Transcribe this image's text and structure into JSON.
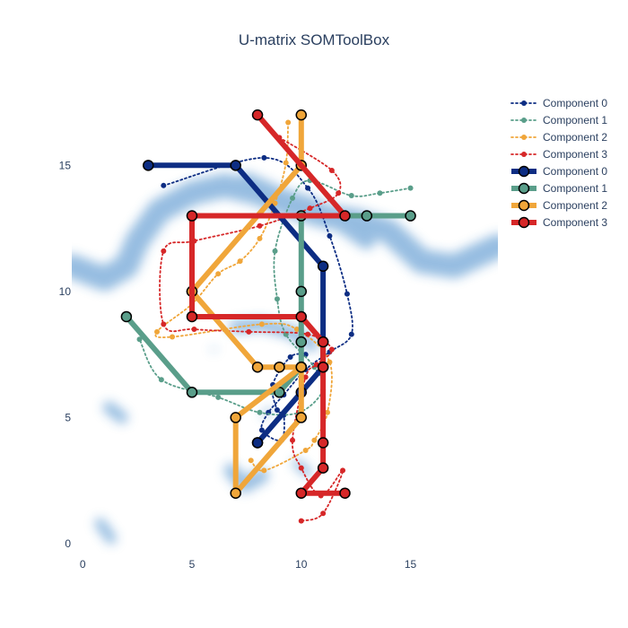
{
  "chart_data": {
    "type": "line",
    "title": "U-matrix SOMToolBox",
    "xlabel": "",
    "ylabel": "",
    "xlim": [
      -0.5,
      19
    ],
    "ylim": [
      -0.5,
      18
    ],
    "x_ticks": [
      0,
      5,
      10,
      15
    ],
    "y_ticks": [
      0,
      5,
      10,
      15
    ],
    "grid": false,
    "legend_position": "top-right",
    "colors": {
      "component_0": "#0d2d83",
      "component_1": "#5a9e8a",
      "component_2": "#f0a63a",
      "component_3": "#d62728",
      "umatrix": "#2d7cc3"
    },
    "umatrix_ridges": [
      {
        "points": [
          [
            -0.5,
            11
          ],
          [
            1,
            10.5
          ],
          [
            2,
            11
          ],
          [
            2.5,
            12
          ],
          [
            3.5,
            13.2
          ],
          [
            5,
            13.9
          ],
          [
            6.5,
            14.2
          ],
          [
            8,
            13.9
          ],
          [
            9.5,
            13.4
          ],
          [
            11,
            13
          ],
          [
            12.5,
            12.8
          ],
          [
            14,
            12.4
          ],
          [
            15.5,
            11.2
          ],
          [
            17,
            11
          ],
          [
            18,
            11.4
          ],
          [
            19,
            11.8
          ]
        ],
        "width": 1.1
      },
      {
        "points": [
          [
            7.5,
            14.4
          ],
          [
            9,
            13.8
          ],
          [
            10.5,
            13.4
          ],
          [
            12,
            12.6
          ],
          [
            13,
            12
          ]
        ],
        "width": 0.75
      },
      {
        "points": [
          [
            7,
            8.6
          ],
          [
            8.2,
            8.7
          ],
          [
            9.5,
            8.4
          ],
          [
            10.5,
            7.9
          ]
        ],
        "width": 0.6
      },
      {
        "points": [
          [
            6.8,
            2.9
          ],
          [
            7.4,
            2.3
          ],
          [
            8.2,
            2.7
          ]
        ],
        "width": 0.65
      },
      {
        "points": [
          [
            1.2,
            5.4
          ],
          [
            1.8,
            5
          ]
        ],
        "width": 0.55
      },
      {
        "points": [
          [
            0.8,
            0.8
          ],
          [
            1.3,
            0.2
          ]
        ],
        "width": 0.5
      },
      {
        "points": [
          [
            9.8,
            3.2
          ],
          [
            10.3,
            2.8
          ]
        ],
        "width": 0.4
      },
      {
        "points": [
          [
            8.3,
            5.1
          ],
          [
            8.6,
            5.3
          ]
        ],
        "width": 0.25
      },
      {
        "points": [
          [
            5.9,
            7.7
          ],
          [
            6.1,
            7.7
          ]
        ],
        "width": 0.12
      }
    ],
    "series": [
      {
        "name": "Component 0",
        "style": "dotted",
        "color_key": "component_0",
        "x": [
          3.7,
          8.3,
          10.3,
          11.3,
          12.1,
          12.3,
          11.3,
          10.2,
          9.2,
          8.5,
          8.2,
          9.1,
          9.2,
          8.9,
          8.7,
          9.5,
          10.2
        ],
        "y": [
          14.2,
          15.3,
          14.1,
          12.2,
          9.9,
          8.3,
          7.6,
          6.9,
          5.9,
          5.2,
          4.5,
          4.1,
          5.1,
          5.3,
          6.3,
          7.4,
          7.5
        ]
      },
      {
        "name": "Component 1",
        "style": "dotted",
        "color_key": "component_1",
        "x": [
          15,
          13.6,
          12.3,
          10.4,
          9.6,
          8.8,
          8.9,
          9.3,
          10.6,
          11,
          9.9,
          8.1,
          6.2,
          3.6,
          2.6
        ],
        "y": [
          14.1,
          13.9,
          13.8,
          14.4,
          13.7,
          11.6,
          9.7,
          8.3,
          7,
          6.1,
          5.2,
          5.2,
          5.8,
          6.5,
          8.1
        ]
      },
      {
        "name": "Component 2",
        "style": "dotted",
        "color_key": "component_2",
        "x": [
          9.4,
          9.3,
          8.8,
          8.1,
          7.2,
          6.2,
          5,
          3.4,
          4.1,
          8.2,
          9.8,
          11.3,
          11.2,
          10.6,
          10.2,
          8.3,
          7.7
        ],
        "y": [
          16.7,
          15.1,
          13.5,
          12.1,
          11.2,
          10.7,
          9.5,
          8.4,
          8.2,
          8.7,
          8.5,
          7.2,
          5.2,
          4.1,
          3.7,
          2.9,
          3.3
        ]
      },
      {
        "name": "Component 3",
        "style": "dotted",
        "color_key": "component_3",
        "x": [
          9,
          11.4,
          11.7,
          10.4,
          8.1,
          5.1,
          3.7,
          3.7,
          5.1,
          7.6,
          10.3,
          11.4,
          10.7,
          10.2,
          9.6,
          10,
          10.9,
          11.9,
          11,
          10
        ],
        "y": [
          16.1,
          14.8,
          13.9,
          13.3,
          12.6,
          12,
          11.6,
          8.7,
          8.5,
          8.4,
          8.3,
          7.7,
          7.1,
          6.6,
          4.1,
          3,
          1.9,
          2.9,
          1.2,
          0.9
        ]
      },
      {
        "name": "Component 0",
        "style": "solid",
        "color_key": "component_0",
        "x": [
          3,
          7,
          11,
          11,
          11,
          11,
          10,
          8,
          8
        ],
        "y": [
          15,
          15,
          11,
          8,
          7,
          7,
          6,
          4,
          4
        ]
      },
      {
        "name": "Component 1",
        "style": "solid",
        "color_key": "component_1",
        "x": [
          15,
          13,
          10,
          10,
          10,
          10,
          9,
          5,
          2
        ],
        "y": [
          13,
          13,
          13,
          10,
          8,
          7,
          6,
          6,
          9
        ]
      },
      {
        "name": "Component 2",
        "style": "solid",
        "color_key": "component_2",
        "x": [
          10,
          10,
          5,
          5,
          8,
          10,
          7,
          7,
          10,
          10,
          9
        ],
        "y": [
          17,
          15,
          10,
          10,
          7,
          7,
          5,
          2,
          5,
          7,
          7
        ]
      },
      {
        "name": "Component 3",
        "style": "solid",
        "color_key": "component_3",
        "x": [
          8,
          12,
          5,
          5,
          10,
          11,
          11,
          11,
          11,
          10,
          12
        ],
        "y": [
          17,
          13,
          13,
          9,
          9,
          8,
          7,
          4,
          3,
          2,
          2
        ]
      }
    ]
  }
}
